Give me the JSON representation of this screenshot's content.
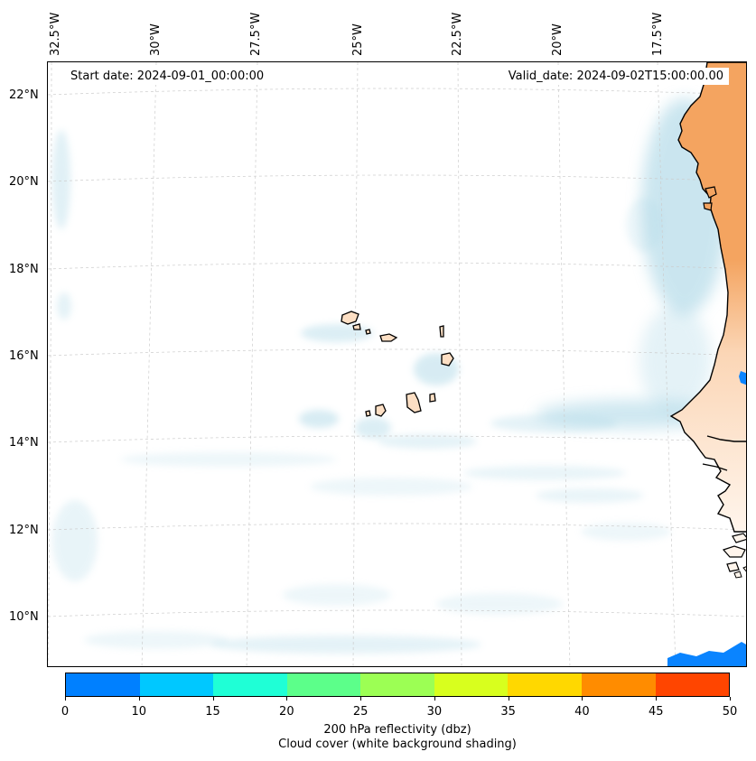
{
  "map": {
    "start_date": "Start date: 2024-09-01_00:00:00",
    "valid_date": "Valid_date: 2024-09-02T15:00:00.00",
    "longitude_labels": [
      "32.5°W",
      "30°W",
      "27.5°W",
      "25°W",
      "22.5°W",
      "20°W",
      "17.5°W"
    ],
    "latitude_labels": [
      "22°N",
      "20°N",
      "18°N",
      "16°N",
      "14°N",
      "12°N",
      "10°N"
    ],
    "land_color": "#f4a460",
    "cloud_color": "#a8d5e5",
    "island_color": "#fde3cc"
  },
  "colorbar": {
    "ticks": [
      "0",
      "10",
      "15",
      "20",
      "25",
      "30",
      "35",
      "40",
      "45",
      "50"
    ],
    "colors": [
      "#0080ff",
      "#00c8ff",
      "#1fffd6",
      "#5cff8a",
      "#9cff54",
      "#d8ff1e",
      "#ffd800",
      "#ff8c00",
      "#ff4500"
    ],
    "label_line1": "200 hPa reflectivity (dbz)",
    "label_line2": "Cloud cover (white background shading)"
  }
}
